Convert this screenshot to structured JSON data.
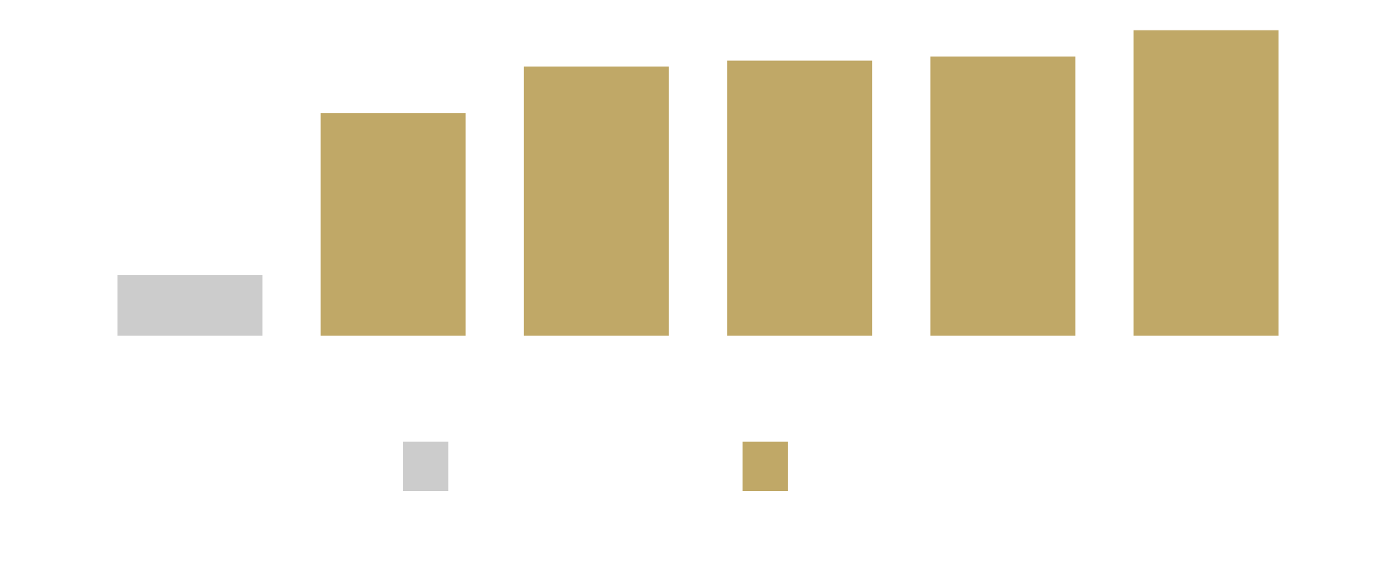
{
  "chart_data": {
    "type": "bar",
    "categories": [
      "",
      "",
      "",
      "",
      "",
      ""
    ],
    "series": [
      {
        "color": "#cccccc",
        "values": [
          15,
          null,
          null,
          null,
          null,
          null
        ]
      },
      {
        "color": "#c0a867",
        "values": [
          null,
          55,
          66.5,
          68,
          69,
          75.5
        ]
      }
    ],
    "ylim": [
      0,
      80
    ],
    "grid": false,
    "legend": "bottom-center"
  }
}
